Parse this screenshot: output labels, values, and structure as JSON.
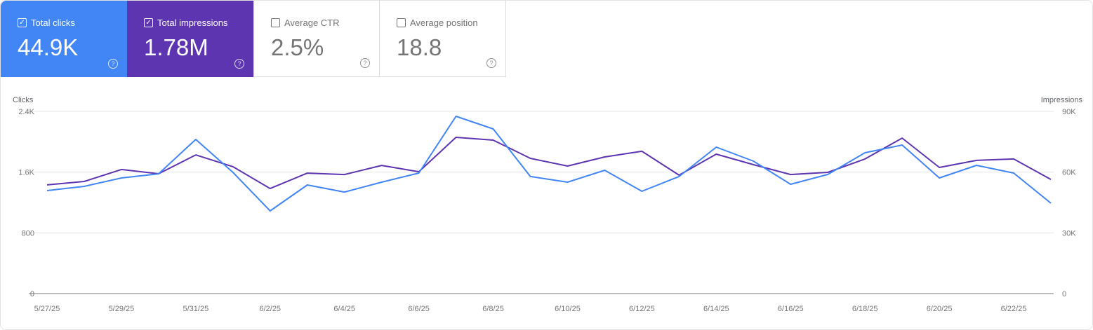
{
  "metrics": [
    {
      "label": "Total clicks",
      "value": "44.9K",
      "checked": true,
      "color": "#4285f4"
    },
    {
      "label": "Total impressions",
      "value": "1.78M",
      "checked": true,
      "color": "#5e35b1"
    },
    {
      "label": "Average CTR",
      "value": "2.5%",
      "checked": false
    },
    {
      "label": "Average position",
      "value": "18.8",
      "checked": false
    }
  ],
  "chart_data": {
    "type": "line",
    "x": [
      "5/27/25",
      "5/28/25",
      "5/29/25",
      "5/30/25",
      "5/31/25",
      "6/1/25",
      "6/2/25",
      "6/3/25",
      "6/4/25",
      "6/5/25",
      "6/6/25",
      "6/7/25",
      "6/8/25",
      "6/9/25",
      "6/10/25",
      "6/11/25",
      "6/12/25",
      "6/13/25",
      "6/14/25",
      "6/15/25",
      "6/16/25",
      "6/17/25",
      "6/18/25",
      "6/19/25",
      "6/20/25",
      "6/21/25",
      "6/22/25",
      "6/23/25"
    ],
    "x_tick_labels": [
      "5/27/25",
      "5/29/25",
      "5/31/25",
      "6/2/25",
      "6/4/25",
      "6/6/25",
      "6/8/25",
      "6/10/25",
      "6/12/25",
      "6/14/25",
      "6/16/25",
      "6/18/25",
      "6/20/25",
      "6/22/25"
    ],
    "ylabel_left": "Clicks",
    "ylabel_right": "Impressions",
    "ylim_left": [
      0,
      2400
    ],
    "ylim_right": [
      0,
      90000
    ],
    "yticks_left": [
      "0",
      "800",
      "1.6K",
      "2.4K"
    ],
    "yticks_right": [
      "0",
      "30K",
      "60K",
      "90K"
    ],
    "grid": true,
    "series": [
      {
        "axis": "left",
        "color": "#4285f4",
        "values": [
          1357,
          1412,
          1523,
          1578,
          2031,
          1597,
          1089,
          1431,
          1338,
          1468,
          1588,
          2335,
          2169,
          1542,
          1468,
          1625,
          1348,
          1542,
          1929,
          1745,
          1440,
          1569,
          1855,
          1957,
          1523,
          1689,
          1588,
          1191
        ]
      },
      {
        "axis": "right",
        "color": "#5e35b1",
        "values": [
          53700,
          55400,
          61300,
          59200,
          68500,
          62700,
          51900,
          59500,
          58800,
          63300,
          60200,
          77200,
          75800,
          66800,
          63000,
          67500,
          70300,
          58500,
          68900,
          63700,
          58800,
          59900,
          66500,
          76800,
          62300,
          65800,
          66500,
          56400
        ]
      }
    ]
  }
}
